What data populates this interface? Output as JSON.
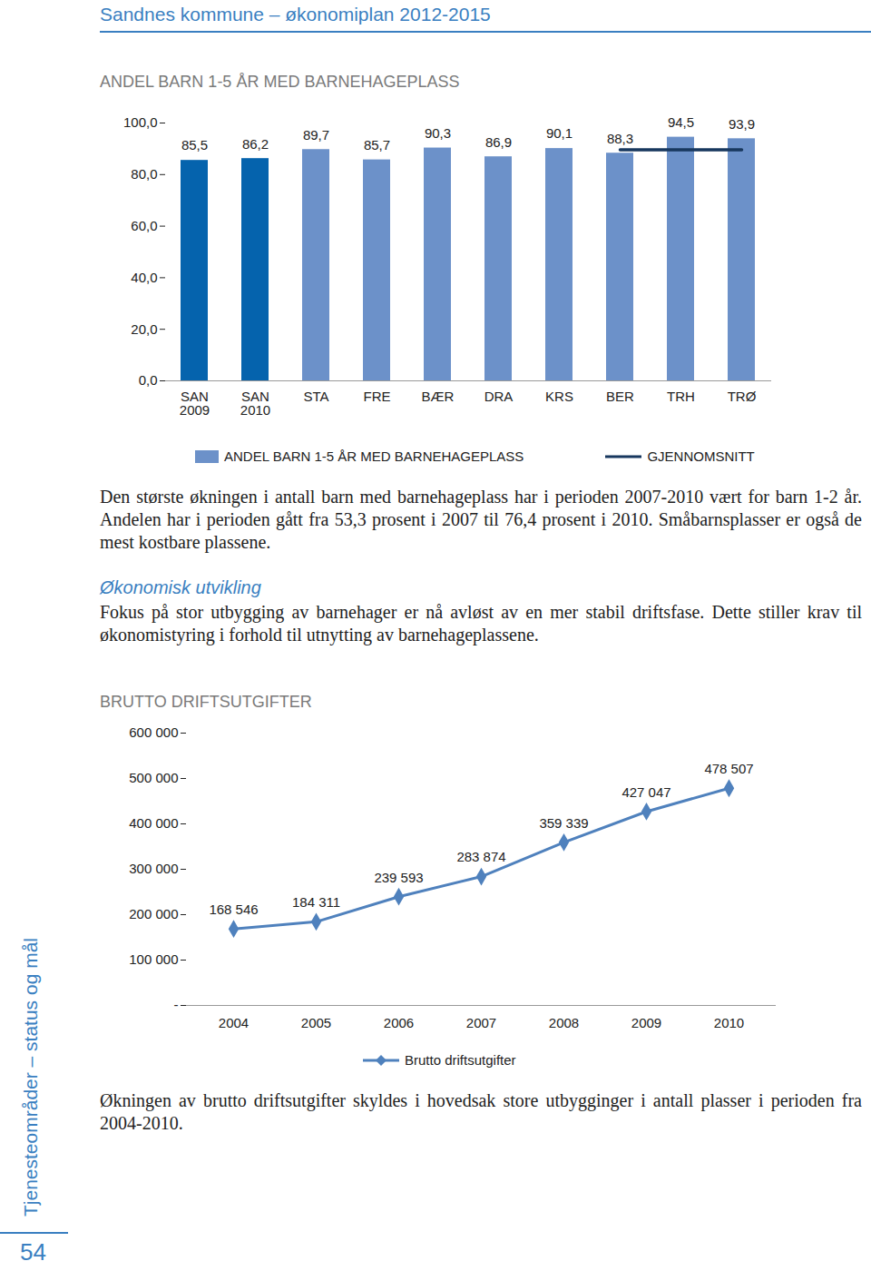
{
  "header": {
    "title": "Sandnes kommune – økonomiplan 2012-2015"
  },
  "chart_data": [
    {
      "type": "bar",
      "title": "ANDEL BARN 1-5 ÅR MED BARNEHAGEPLASS",
      "categories": [
        "SAN\n2009",
        "SAN\n2010",
        "STA",
        "FRE",
        "BÆR",
        "DRA",
        "KRS",
        "BER",
        "TRH",
        "TRØ"
      ],
      "series": [
        {
          "name": "ANDEL BARN 1-5 ÅR MED BARNEHAGEPLASS",
          "type": "bar",
          "values": [
            85.5,
            86.2,
            89.7,
            85.7,
            90.3,
            86.9,
            90.1,
            88.3,
            94.5,
            93.9
          ],
          "value_labels": [
            "85,5",
            "86,2",
            "89,7",
            "85,7",
            "90,3",
            "86,9",
            "90,1",
            "88,3",
            "94,5",
            "93,9"
          ],
          "colors": [
            "#0563ad",
            "#0563ad",
            "#6c91c9",
            "#6c91c9",
            "#6c91c9",
            "#6c91c9",
            "#6c91c9",
            "#6c91c9",
            "#6c91c9",
            "#6c91c9"
          ]
        },
        {
          "name": "GJENNOMSNITT",
          "type": "line",
          "color": "#17375e",
          "values": [
            null,
            null,
            null,
            null,
            null,
            null,
            null,
            89.6,
            89.6,
            89.6
          ]
        }
      ],
      "ylim": [
        0,
        100
      ],
      "yticks": [
        {
          "value": 0,
          "label": "0,0"
        },
        {
          "value": 20,
          "label": "20,0"
        },
        {
          "value": 40,
          "label": "40,0"
        },
        {
          "value": 60,
          "label": "60,0"
        },
        {
          "value": 80,
          "label": "80,0"
        },
        {
          "value": 100,
          "label": "100,0"
        }
      ],
      "data_labels": true,
      "grid": false,
      "legend": "bottom"
    },
    {
      "type": "line",
      "title": "BRUTTO DRIFTSUTGIFTER",
      "categories": [
        "2004",
        "2005",
        "2006",
        "2007",
        "2008",
        "2009",
        "2010"
      ],
      "series": [
        {
          "name": "Brutto driftsutgifter",
          "color": "#4f81bd",
          "marker": "diamond",
          "values": [
            168546,
            184311,
            239593,
            283874,
            359339,
            427047,
            478507
          ],
          "value_labels": [
            "168 546",
            "184 311",
            "239 593",
            "283 874",
            "359 339",
            "427 047",
            "478 507"
          ]
        }
      ],
      "ylim": [
        0,
        600000
      ],
      "yticks": [
        {
          "value": 0,
          "label": "-"
        },
        {
          "value": 100000,
          "label": "100 000"
        },
        {
          "value": 200000,
          "label": "200 000"
        },
        {
          "value": 300000,
          "label": "300 000"
        },
        {
          "value": 400000,
          "label": "400 000"
        },
        {
          "value": 500000,
          "label": "500 000"
        },
        {
          "value": 600000,
          "label": "600 000"
        }
      ],
      "data_labels": true,
      "grid": false,
      "legend": "bottom"
    }
  ],
  "text": {
    "intro": "Den største økningen i antall barn med barnehageplass har i perioden 2007-2010 vært for barn 1-2 år. Andelen har i perioden gått fra 53,3 prosent i 2007 til 76,4 prosent i 2010. Småbarnsplasser er også de mest kostbare plassene.",
    "heading": "Økonomisk utvikling",
    "economy": "Fokus på stor utbygging av barnehager er nå avløst av en mer stabil driftsfase. Dette stiller krav til økonomistyring i forhold til utnytting av barnehageplassene.",
    "closing": "Økningen av brutto driftsutgifter skyldes i hovedsak store utbygginger i antall plasser i perioden fra 2004-2010."
  },
  "sidebar": {
    "text": "Tjenesteområder – status og mål",
    "page_number": "54"
  }
}
